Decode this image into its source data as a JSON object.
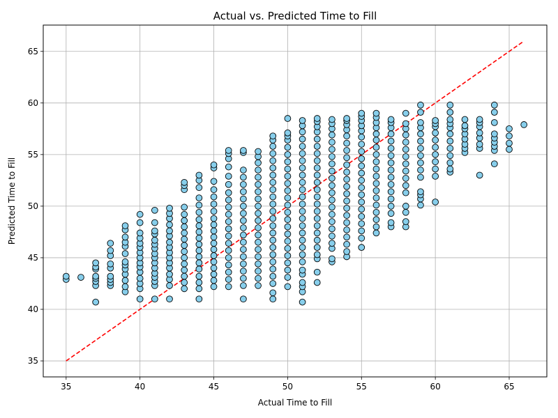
{
  "chart_data": {
    "type": "scatter",
    "title": "Actual vs. Predicted Time to Fill",
    "xlabel": "Actual Time to Fill",
    "ylabel": "Predicted Time to Fill",
    "xlim": [
      33.45,
      67.55
    ],
    "ylim": [
      33.45,
      67.55
    ],
    "xticks": [
      35,
      40,
      45,
      50,
      55,
      60,
      65
    ],
    "yticks": [
      35,
      40,
      45,
      50,
      55,
      60,
      65
    ],
    "xtick_labels": [
      "35",
      "40",
      "45",
      "50",
      "55",
      "60",
      "65"
    ],
    "ytick_labels": [
      "35",
      "40",
      "45",
      "50",
      "55",
      "60",
      "65"
    ],
    "grid": true,
    "marker_fill": "#87ceeb",
    "marker_edge": "#000000",
    "reference_line": {
      "style": "dashed",
      "color": "#ff0000",
      "x": [
        35,
        66
      ],
      "y": [
        35,
        66
      ]
    },
    "columns": [
      {
        "x": 35,
        "y": [
          42.9,
          43.2
        ]
      },
      {
        "x": 36,
        "y": [
          43.1
        ]
      },
      {
        "x": 37,
        "y": [
          40.7,
          42.3,
          42.7,
          43.0,
          43.2,
          43.9,
          44.1,
          44.5
        ]
      },
      {
        "x": 38,
        "y": [
          42.3,
          42.6,
          42.9,
          43.2,
          44.0,
          44.4,
          45.2,
          45.7,
          46.4
        ]
      },
      {
        "x": 39,
        "y": [
          41.7,
          42.2,
          42.8,
          43.4,
          43.9,
          44.3,
          44.6,
          45.4,
          46.1,
          46.5,
          47.0,
          47.7,
          48.1
        ]
      },
      {
        "x": 40,
        "y": [
          41.0,
          42.0,
          42.5,
          43.0,
          43.6,
          44.1,
          44.5,
          45.0,
          45.5,
          46.0,
          46.4,
          46.9,
          47.4,
          48.4,
          49.2
        ]
      },
      {
        "x": 41,
        "y": [
          41.0,
          42.3,
          42.7,
          43.1,
          43.5,
          44.0,
          44.5,
          45.0,
          45.4,
          45.9,
          46.3,
          46.7,
          47.3,
          47.6,
          48.4,
          49.6
        ]
      },
      {
        "x": 42,
        "y": [
          41.0,
          42.3,
          42.9,
          43.4,
          44.0,
          44.5,
          45.0,
          45.5,
          46.0,
          46.5,
          47.1,
          47.6,
          48.2,
          48.8,
          49.3,
          49.8
        ]
      },
      {
        "x": 43,
        "y": [
          42.0,
          42.6,
          43.2,
          43.8,
          44.4,
          45.0,
          45.6,
          46.2,
          46.8,
          47.4,
          48.0,
          48.6,
          49.2,
          49.9,
          51.6,
          52.0,
          52.3
        ]
      },
      {
        "x": 44,
        "y": [
          41.0,
          42.0,
          42.6,
          43.2,
          43.9,
          44.5,
          45.1,
          45.7,
          46.3,
          46.9,
          47.5,
          48.1,
          48.7,
          49.4,
          50.1,
          50.8,
          51.8,
          52.5,
          53.0
        ]
      },
      {
        "x": 45,
        "y": [
          42.2,
          42.8,
          43.4,
          44.0,
          44.6,
          45.2,
          45.8,
          46.4,
          47.0,
          47.6,
          48.2,
          48.8,
          49.5,
          50.2,
          50.9,
          51.6,
          52.4,
          53.7,
          54.0
        ]
      },
      {
        "x": 46,
        "y": [
          42.2,
          42.9,
          43.6,
          44.3,
          45.0,
          45.7,
          46.4,
          47.1,
          47.8,
          48.5,
          49.2,
          49.9,
          50.6,
          51.3,
          52.1,
          52.9,
          53.8,
          54.6,
          55.1,
          55.4
        ]
      },
      {
        "x": 47,
        "y": [
          41.0,
          42.3,
          43.0,
          43.7,
          44.4,
          45.1,
          45.8,
          46.5,
          47.2,
          47.9,
          48.6,
          49.3,
          50.0,
          50.7,
          51.4,
          52.1,
          52.8,
          53.5,
          55.2,
          55.4
        ]
      },
      {
        "x": 48,
        "y": [
          42.3,
          43.0,
          43.7,
          44.4,
          45.1,
          45.8,
          46.5,
          47.2,
          47.9,
          48.6,
          49.3,
          50.0,
          50.7,
          51.4,
          52.1,
          52.8,
          53.5,
          54.2,
          54.8,
          55.3
        ]
      },
      {
        "x": 49,
        "y": [
          41.0,
          41.6,
          42.5,
          43.2,
          43.9,
          44.6,
          45.3,
          46.0,
          46.7,
          47.4,
          48.1,
          48.8,
          49.5,
          50.2,
          50.9,
          51.6,
          52.3,
          53.0,
          53.7,
          54.4,
          55.1,
          55.8,
          56.4,
          56.8
        ]
      },
      {
        "x": 50,
        "y": [
          42.2,
          43.1,
          43.8,
          44.5,
          45.2,
          45.9,
          46.6,
          47.3,
          48.0,
          48.7,
          49.4,
          50.1,
          50.8,
          51.5,
          52.2,
          52.9,
          53.6,
          54.3,
          55.0,
          55.7,
          56.4,
          56.8,
          57.1,
          58.5
        ]
      },
      {
        "x": 51,
        "y": [
          40.7,
          41.7,
          42.2,
          42.6,
          43.4,
          43.8,
          44.6,
          45.3,
          46.0,
          46.7,
          47.4,
          48.1,
          48.8,
          49.5,
          50.2,
          50.9,
          51.6,
          52.3,
          53.0,
          53.7,
          54.4,
          55.1,
          55.8,
          56.5,
          57.2,
          57.8,
          58.3
        ]
      },
      {
        "x": 52,
        "y": [
          42.6,
          43.6,
          44.9,
          45.3,
          46.0,
          46.7,
          47.4,
          48.1,
          48.8,
          49.5,
          50.2,
          50.9,
          51.6,
          52.3,
          53.0,
          53.7,
          54.4,
          55.1,
          55.8,
          56.5,
          57.2,
          57.7,
          58.2,
          58.5
        ]
      },
      {
        "x": 53,
        "y": [
          44.6,
          44.9,
          45.9,
          46.4,
          47.1,
          47.8,
          48.5,
          49.2,
          49.9,
          50.6,
          51.3,
          52.0,
          52.7,
          53.4,
          54.1,
          54.8,
          55.5,
          56.2,
          56.9,
          57.5,
          58.0,
          58.4
        ]
      },
      {
        "x": 54,
        "y": [
          45.1,
          45.6,
          46.3,
          47.0,
          47.7,
          48.4,
          49.1,
          49.8,
          50.5,
          51.2,
          51.9,
          52.6,
          53.3,
          54.0,
          54.7,
          55.4,
          56.1,
          56.8,
          57.4,
          57.9,
          58.3,
          58.5
        ]
      },
      {
        "x": 55,
        "y": [
          46.0,
          46.9,
          47.6,
          48.3,
          49.0,
          49.7,
          50.4,
          51.1,
          51.8,
          52.5,
          53.2,
          53.9,
          54.6,
          55.3,
          56.0,
          56.7,
          57.3,
          57.8,
          58.3,
          58.7,
          59.0
        ]
      },
      {
        "x": 56,
        "y": [
          47.4,
          48.0,
          48.7,
          49.4,
          50.1,
          50.8,
          51.5,
          52.2,
          52.9,
          53.6,
          54.3,
          55.0,
          55.7,
          56.4,
          57.0,
          57.6,
          58.1,
          58.6,
          59.0
        ]
      },
      {
        "x": 57,
        "y": [
          48.0,
          48.4,
          49.3,
          50.0,
          50.7,
          51.4,
          52.1,
          52.8,
          53.5,
          54.2,
          54.9,
          55.6,
          56.3,
          57.0,
          57.6,
          58.1,
          58.4
        ]
      },
      {
        "x": 58,
        "y": [
          48.0,
          48.5,
          49.4,
          50.0,
          51.3,
          52.0,
          52.7,
          53.4,
          54.1,
          54.8,
          55.5,
          56.2,
          56.9,
          57.5,
          58.0,
          59.0
        ]
      },
      {
        "x": 59,
        "y": [
          50.1,
          50.7,
          51.1,
          51.4,
          52.8,
          53.5,
          54.2,
          54.9,
          55.6,
          56.3,
          57.0,
          57.6,
          58.1,
          59.1,
          59.8
        ]
      },
      {
        "x": 60,
        "y": [
          50.4,
          52.9,
          53.6,
          54.3,
          55.0,
          55.7,
          56.4,
          57.1,
          57.7,
          58.0,
          58.3
        ]
      },
      {
        "x": 61,
        "y": [
          53.3,
          53.6,
          54.2,
          54.9,
          55.6,
          56.3,
          57.0,
          57.6,
          58.0,
          58.4,
          59.1,
          59.8
        ]
      },
      {
        "x": 62,
        "y": [
          55.2,
          55.6,
          56.0,
          56.5,
          57.0,
          57.5,
          57.8,
          58.4
        ]
      },
      {
        "x": 63,
        "y": [
          53.0,
          55.6,
          56.0,
          56.6,
          57.1,
          57.7,
          58.1,
          58.4
        ]
      },
      {
        "x": 64,
        "y": [
          54.1,
          55.4,
          55.8,
          56.2,
          56.6,
          57.0,
          58.1,
          59.1,
          59.8
        ]
      },
      {
        "x": 65,
        "y": [
          55.5,
          56.1,
          56.8,
          57.5
        ]
      },
      {
        "x": 66,
        "y": [
          57.9
        ]
      }
    ]
  }
}
